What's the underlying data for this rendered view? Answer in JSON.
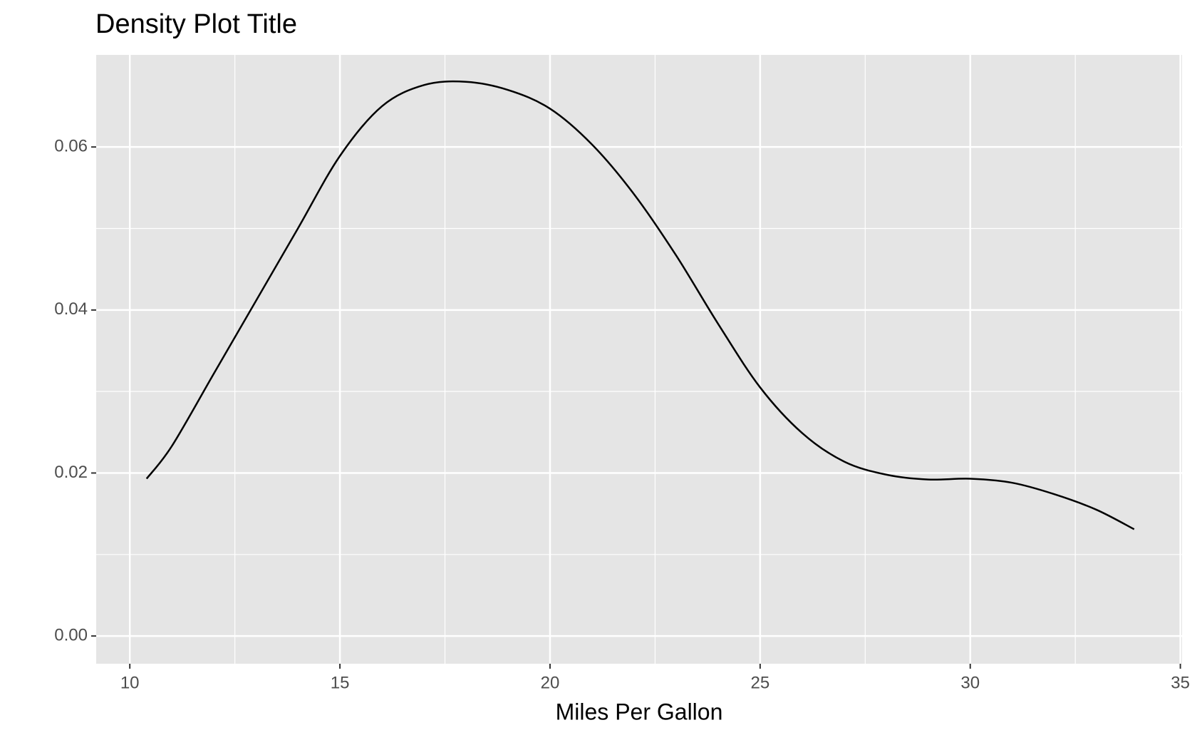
{
  "chart_data": {
    "type": "line",
    "title": "Density Plot Title",
    "x_label": "Miles Per Gallon",
    "x": [
      10.4,
      11,
      12,
      13,
      14,
      15,
      16,
      17,
      18,
      19,
      20,
      21,
      22,
      23,
      24,
      25,
      26,
      27,
      28,
      29,
      30,
      31,
      32,
      33,
      33.9
    ],
    "series": [
      {
        "color": "#000000",
        "values": [
          0.0193,
          0.0233,
          0.0322,
          0.0411,
          0.05,
          0.0589,
          0.065,
          0.0676,
          0.068,
          0.067,
          0.0647,
          0.0603,
          0.0542,
          0.0467,
          0.0383,
          0.0305,
          0.0249,
          0.0214,
          0.0198,
          0.0192,
          0.0193,
          0.0188,
          0.0174,
          0.0155,
          0.0131
        ]
      }
    ],
    "xlim": [
      9.2,
      35.04
    ],
    "ylim": [
      -0.0034,
      0.0713
    ],
    "xticks": [
      10,
      15,
      20,
      25,
      30,
      35
    ],
    "yticks": [
      {
        "value": 0,
        "label": "0.00"
      },
      0.02,
      0.04,
      0.06
    ],
    "minor_xticks": [
      12.5,
      17.5,
      22.5,
      27.5,
      32.5
    ],
    "minor_yticks": [
      0.01,
      0.03,
      0.05
    ],
    "grid": true
  }
}
